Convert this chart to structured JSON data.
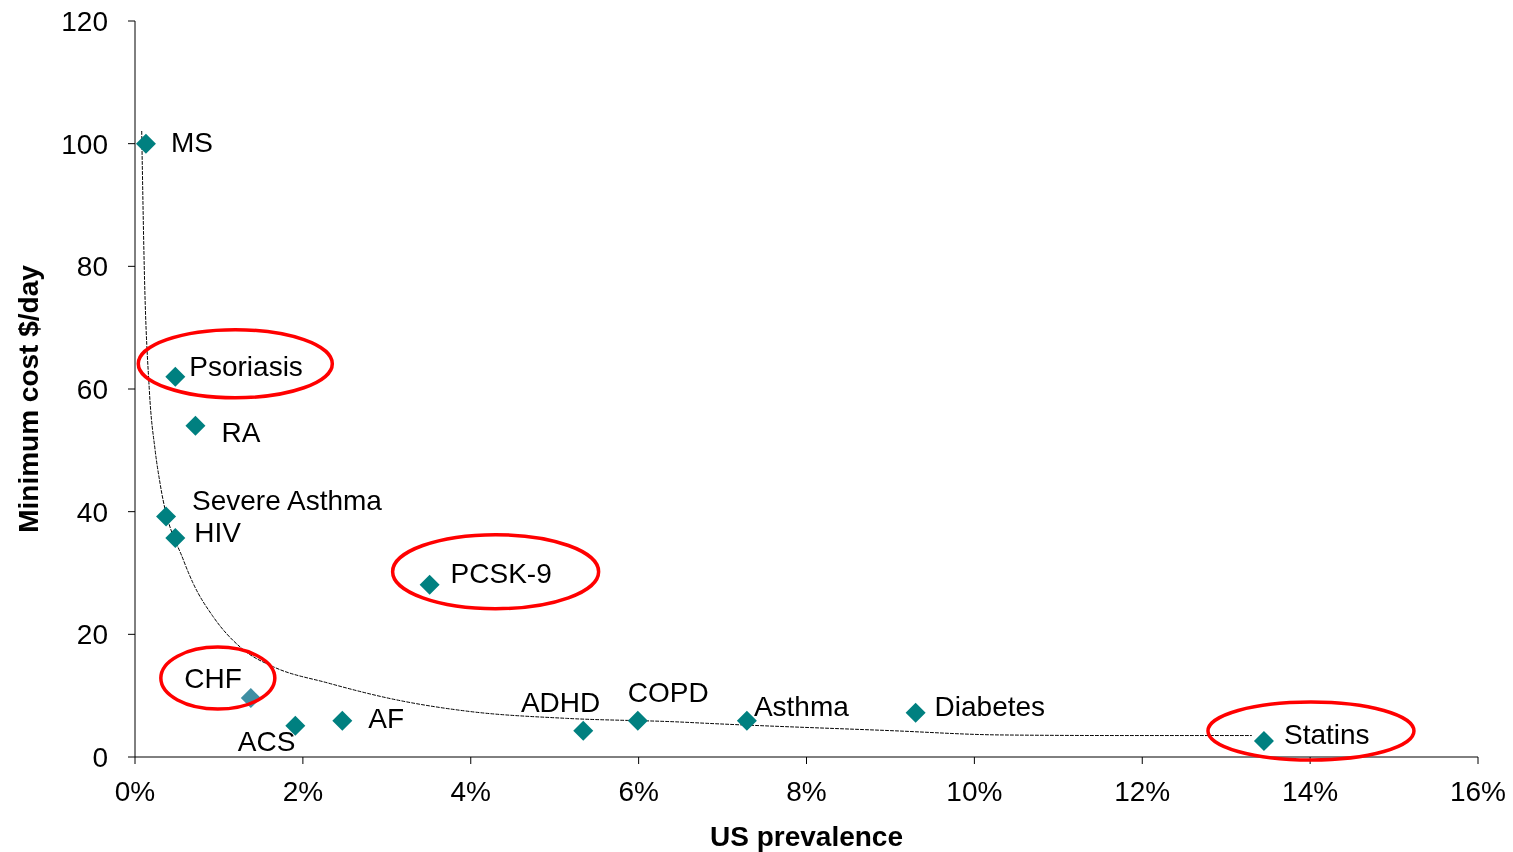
{
  "chart_data": {
    "type": "scatter",
    "xlabel": "US prevalence",
    "ylabel": "Minimum cost $/day",
    "xlim": [
      0,
      16
    ],
    "xticks": [
      {
        "value": 0,
        "label": "0%"
      },
      {
        "value": 2,
        "label": "2%"
      },
      {
        "value": 4,
        "label": "4%"
      },
      {
        "value": 6,
        "label": "6%"
      },
      {
        "value": 8,
        "label": "8%"
      },
      {
        "value": 10,
        "label": "10%"
      },
      {
        "value": 12,
        "label": "12%"
      },
      {
        "value": 14,
        "label": "14%"
      },
      {
        "value": 16,
        "label": "16%"
      }
    ],
    "ylim": [
      0,
      120
    ],
    "yticks": [
      0,
      20,
      40,
      60,
      80,
      100,
      120
    ],
    "grid": false,
    "marker": "diamond",
    "series": [
      {
        "type": "scatter",
        "color": "#008080",
        "colors": [
          "#008080",
          "#008080",
          "#008080",
          "#008080",
          "#008080",
          "#008080",
          "#3f8fa3",
          "#008080",
          "#008080",
          "#008080",
          "#008080",
          "#008080",
          "#008080",
          "#008080"
        ],
        "x": [
          0.13,
          0.48,
          0.72,
          0.37,
          0.48,
          3.51,
          1.38,
          1.91,
          2.47,
          5.34,
          5.99,
          7.29,
          9.3,
          13.45
        ],
        "values": [
          100,
          62,
          54,
          39.2,
          35.7,
          28.1,
          9.6,
          5.1,
          5.9,
          4.3,
          5.9,
          5.9,
          7.2,
          2.6
        ]
      },
      {
        "type": "line",
        "color": "#000000",
        "line_style": "dashed",
        "marker": "none",
        "x": [
          0.08,
          0.11,
          0.17,
          0.24,
          0.3,
          0.58,
          0.69,
          0.93,
          1.29,
          1.65,
          2.29,
          3.12,
          4.0,
          5.14,
          6.5,
          6.8,
          9.0,
          10.3,
          11.73,
          13.3
        ],
        "values": [
          102,
          80,
          60,
          50,
          44.5,
          32,
          28.4,
          22.9,
          17.5,
          14.7,
          12.1,
          9.3,
          7.4,
          6.3,
          5.7,
          5.5,
          4.3,
          3.6,
          3.5,
          3.5
        ]
      }
    ],
    "annotations": [
      {
        "text": "MS",
        "x": 0.13,
        "y": 100
      },
      {
        "text": "Psoriasis",
        "x": 0.48,
        "y": 62
      },
      {
        "text": "RA",
        "x": 0.72,
        "y": 54
      },
      {
        "text": "Severe Asthma",
        "x": 0.37,
        "y": 39.2
      },
      {
        "text": "HIV",
        "x": 0.48,
        "y": 35.7
      },
      {
        "text": "PCSK-9",
        "x": 3.51,
        "y": 28.1
      },
      {
        "text": "CHF",
        "x": 1.38,
        "y": 9.6
      },
      {
        "text": "ACS",
        "x": 1.91,
        "y": 5.1
      },
      {
        "text": "AF",
        "x": 2.47,
        "y": 5.9
      },
      {
        "text": "ADHD",
        "x": 5.34,
        "y": 4.3
      },
      {
        "text": "COPD",
        "x": 5.99,
        "y": 5.9
      },
      {
        "text": "Asthma",
        "x": 7.29,
        "y": 5.9
      },
      {
        "text": "Diabetes",
        "x": 9.3,
        "y": 7.2
      },
      {
        "text": "Statins",
        "x": 13.45,
        "y": 2.6
      }
    ]
  }
}
